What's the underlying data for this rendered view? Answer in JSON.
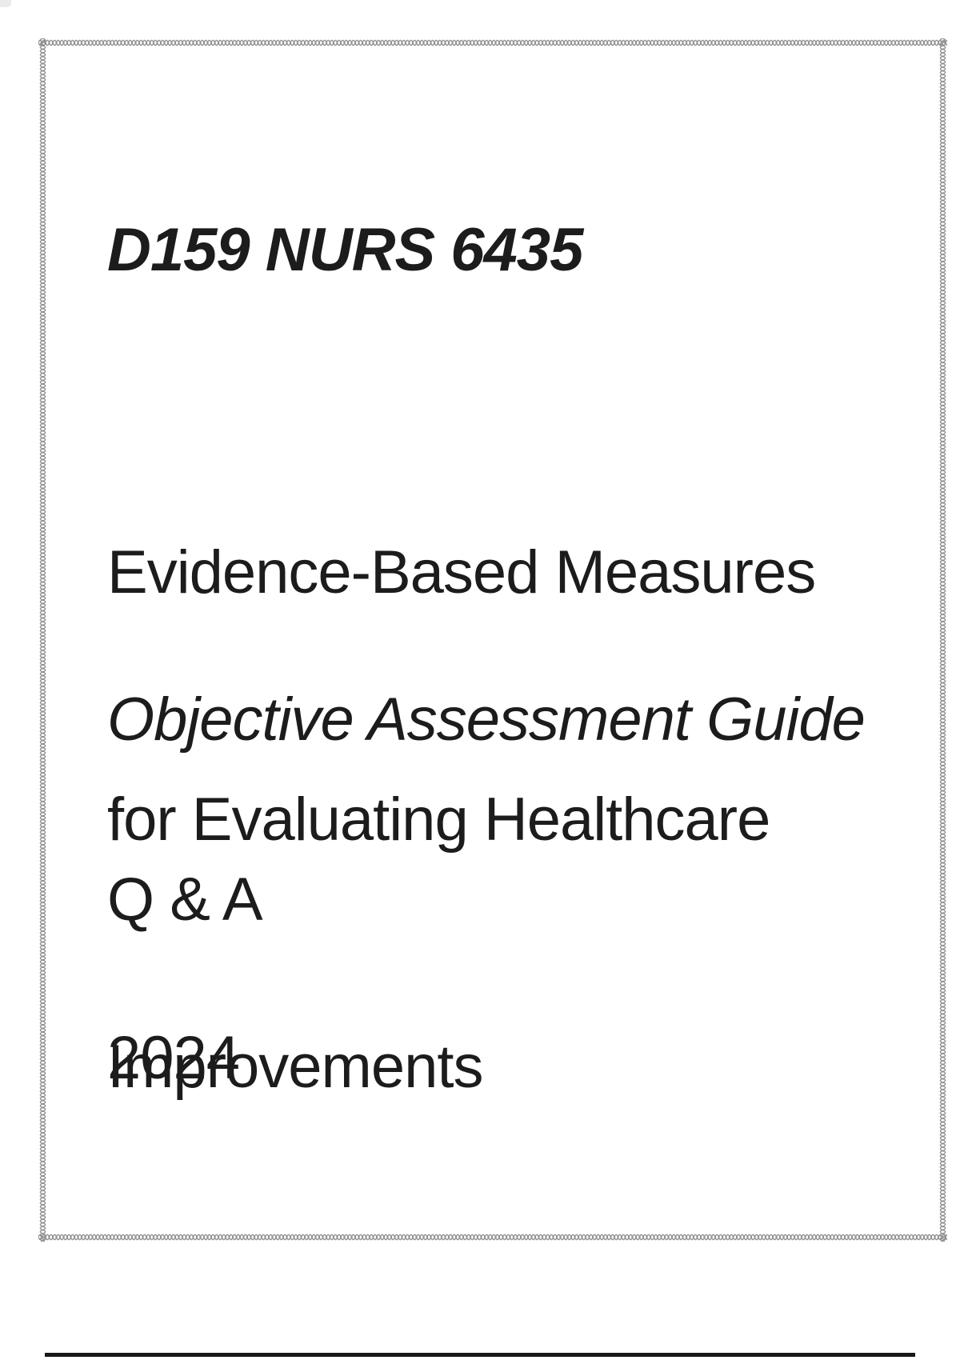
{
  "document": {
    "course_code": "D159 NURS 6435",
    "title_lines": [
      "Evidence-Based Measures",
      "for Evaluating Healthcare",
      "Improvements"
    ],
    "subtitle": "Objective Assessment Guide",
    "qa_heading": "Q & A",
    "year": "2024"
  },
  "colors": {
    "text": "#1c1c1c",
    "border": "#8f8f8f",
    "bottom_rule": "#181818",
    "page_background": "#ffffff"
  }
}
